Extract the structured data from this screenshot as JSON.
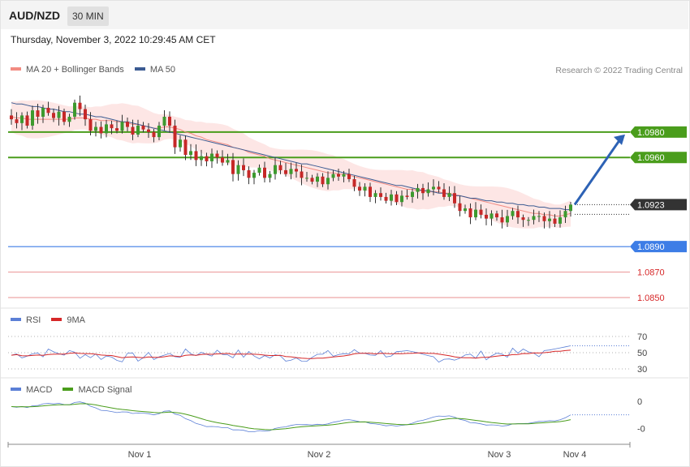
{
  "header": {
    "symbol": "AUD/NZD",
    "timeframe": "30 MIN"
  },
  "datetime": "Thursday, November 3, 2022 10:29:45 AM CET",
  "credit": "Research © 2022 Trading Central",
  "legends": {
    "main": [
      {
        "name": "MA 20 + Bollinger Bands",
        "color": "#f28b82"
      },
      {
        "name": "MA 50",
        "color": "#3b5b92"
      }
    ],
    "rsi": [
      {
        "name": "RSI",
        "color": "#5b7fd6"
      },
      {
        "name": "9MA",
        "color": "#d62728"
      }
    ],
    "macd": [
      {
        "name": "MACD",
        "color": "#5b7fd6"
      },
      {
        "name": "MACD Signal",
        "color": "#4a9d1c"
      }
    ]
  },
  "chart_data": [
    {
      "type": "line",
      "panel": "price",
      "x_labels": [
        "Nov 1",
        "Nov 2",
        "Nov 3",
        "Nov 4"
      ],
      "ylim": [
        1.0843,
        1.102
      ],
      "current_price": "1.0923",
      "levels": [
        {
          "label": "1.0980",
          "value": 1.098,
          "kind": "resistance",
          "color": "#4a9d1c",
          "tag": true
        },
        {
          "label": "1.0960",
          "value": 1.096,
          "kind": "resistance",
          "color": "#4a9d1c",
          "tag": true
        },
        {
          "label": "1.0890",
          "value": 1.089,
          "kind": "pivot",
          "color": "#3d7de6",
          "tag": true
        },
        {
          "label": "1.0870",
          "value": 1.087,
          "kind": "support",
          "color": "#d62728",
          "tag": false
        },
        {
          "label": "1.0850",
          "value": 1.085,
          "kind": "support",
          "color": "#d62728",
          "tag": false
        }
      ],
      "projection": {
        "from": 1.0923,
        "to": 1.098
      },
      "candles_close": [
        1.099,
        1.0987,
        1.0993,
        1.0985,
        1.0997,
        1.0992,
        1.0999,
        1.0995,
        1.0991,
        1.0996,
        1.0988,
        1.0992,
        1.1003,
        1.0998,
        1.099,
        1.0981,
        1.0984,
        1.0979,
        1.0986,
        1.0983,
        1.0981,
        1.0988,
        1.0984,
        1.0978,
        1.0985,
        1.0982,
        1.098,
        1.0976,
        1.0985,
        1.0992,
        1.0985,
        1.0968,
        1.0974,
        1.0962,
        1.0965,
        1.0958,
        1.0961,
        1.0957,
        1.0963,
        1.096,
        1.0956,
        1.0958,
        1.0947,
        1.0954,
        1.095,
        1.0944,
        1.0948,
        1.0952,
        1.0944,
        1.0947,
        1.0954,
        1.095,
        1.0947,
        1.0951,
        1.0949,
        1.0944,
        1.0944,
        1.0941,
        1.0945,
        1.0939,
        1.0944,
        1.0947,
        1.0945,
        1.0947,
        1.0943,
        1.0937,
        1.0934,
        1.0937,
        1.0929,
        1.0932,
        1.0929,
        1.0926,
        1.0931,
        1.0925,
        1.093,
        1.0929,
        1.0933,
        1.0936,
        1.0932,
        1.0935,
        1.0937,
        1.0935,
        1.0929,
        1.0932,
        1.0924,
        1.0918,
        1.092,
        1.0913,
        1.0919,
        1.0915,
        1.0912,
        1.0916,
        1.0913,
        1.0909,
        1.0914,
        1.0918,
        1.0913,
        1.0911,
        1.0911,
        1.0914,
        1.0914,
        1.091,
        1.0912,
        1.0908,
        1.0913,
        1.0918,
        1.0923
      ],
      "ma20": [
        1.0992,
        1.0991,
        1.0991,
        1.099,
        1.099,
        1.099,
        1.099,
        1.099,
        1.099,
        1.099,
        1.099,
        1.099,
        1.0991,
        1.0991,
        1.0991,
        1.099,
        1.099,
        1.0989,
        1.0989,
        1.0989,
        1.0988,
        1.0988,
        1.0987,
        1.0986,
        1.0986,
        1.0985,
        1.0984,
        1.0983,
        1.0983,
        1.0984,
        1.0984,
        1.0983,
        1.0982,
        1.098,
        1.0979,
        1.0977,
        1.0976,
        1.0974,
        1.0973,
        1.0972,
        1.0971,
        1.097,
        1.0968,
        1.0967,
        1.0966,
        1.0964,
        1.0963,
        1.0962,
        1.0961,
        1.0959,
        1.0958,
        1.0957,
        1.0956,
        1.0955,
        1.0954,
        1.0953,
        1.0952,
        1.0951,
        1.095,
        1.0949,
        1.0948,
        1.0948,
        1.0947,
        1.0947,
        1.0946,
        1.0945,
        1.0944,
        1.0943,
        1.0942,
        1.0941,
        1.094,
        1.0939,
        1.0938,
        1.0937,
        1.0936,
        1.0935,
        1.0935,
        1.0934,
        1.0934,
        1.0933,
        1.0933,
        1.0933,
        1.0932,
        1.0932,
        1.0931,
        1.093,
        1.0929,
        1.0928,
        1.0927,
        1.0926,
        1.0925,
        1.0924,
        1.0923,
        1.0922,
        1.0921,
        1.092,
        1.0919,
        1.0918,
        1.0917,
        1.0916,
        1.0916,
        1.0915,
        1.0915,
        1.0914,
        1.0914,
        1.0915,
        1.0916
      ],
      "ma50": [
        1.1003,
        1.1002,
        1.1002,
        1.1001,
        1.1,
        1.1,
        1.0999,
        1.0998,
        1.0998,
        1.0997,
        1.0996,
        1.0996,
        1.0995,
        1.0994,
        1.0994,
        1.0993,
        1.0992,
        1.0992,
        1.0991,
        1.099,
        1.0989,
        1.0988,
        1.0988,
        1.0987,
        1.0986,
        1.0985,
        1.0984,
        1.0983,
        1.0982,
        1.0981,
        1.098,
        1.0979,
        1.0978,
        1.0977,
        1.0976,
        1.0975,
        1.0974,
        1.0973,
        1.0972,
        1.0971,
        1.097,
        1.0969,
        1.0968,
        1.0967,
        1.0966,
        1.0965,
        1.0964,
        1.0963,
        1.0962,
        1.0961,
        1.096,
        1.0959,
        1.0958,
        1.0957,
        1.0956,
        1.0955,
        1.0955,
        1.0954,
        1.0953,
        1.0952,
        1.0951,
        1.095,
        1.0949,
        1.0948,
        1.0947,
        1.0946,
        1.0945,
        1.0944,
        1.0943,
        1.0942,
        1.0941,
        1.094,
        1.0939,
        1.0938,
        1.0938,
        1.0937,
        1.0936,
        1.0935,
        1.0934,
        1.0934,
        1.0933,
        1.0932,
        1.0932,
        1.0931,
        1.093,
        1.093,
        1.0929,
        1.0928,
        1.0928,
        1.0927,
        1.0926,
        1.0926,
        1.0925,
        1.0925,
        1.0924,
        1.0924,
        1.0923,
        1.0923,
        1.0922,
        1.0922,
        1.0921,
        1.0921,
        1.092,
        1.092,
        1.092,
        1.0919,
        1.0919
      ],
      "bb_width": 0.0012
    },
    {
      "type": "line",
      "panel": "rsi",
      "ylim": [
        25,
        80
      ],
      "ticks": [
        "70",
        "50",
        "30"
      ],
      "tick_values": [
        70,
        50,
        30
      ],
      "rsi_seed": 7,
      "points": 107
    },
    {
      "type": "line",
      "panel": "macd",
      "ticks": [
        "0",
        "-0"
      ],
      "tick_values": [
        0,
        -0.001
      ],
      "ylim": [
        -0.0014,
        0.0002
      ]
    }
  ]
}
